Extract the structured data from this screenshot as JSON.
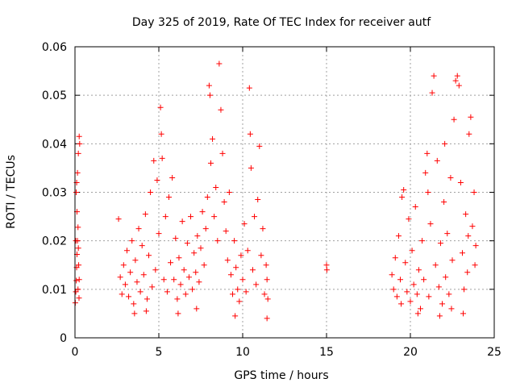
{
  "chart_data": {
    "type": "scatter",
    "title": "Day 325 of 2019, Rate Of TEC Index for receiver autf",
    "xlabel": "GPS time / hours",
    "ylabel": "ROTI / TECUs",
    "xlim": [
      0,
      25
    ],
    "ylim": [
      0,
      0.06
    ],
    "xticks": [
      "0",
      "5",
      "10",
      "15",
      "20",
      "25"
    ],
    "yticks": [
      "0",
      "0.01",
      "0.02",
      "0.03",
      "0.04",
      "0.05",
      "0.06"
    ],
    "grid": true,
    "marker": "+",
    "color": "#ff0000",
    "series": [
      {
        "points": [
          [
            0.02,
            0.0072
          ],
          [
            0.05,
            0.0095
          ],
          [
            0.08,
            0.0118
          ],
          [
            0.1,
            0.0145
          ],
          [
            0.12,
            0.0172
          ],
          [
            0.15,
            0.02
          ],
          [
            0.18,
            0.0228
          ],
          [
            0.2,
            0.0185
          ],
          [
            0.22,
            0.015
          ],
          [
            0.25,
            0.012
          ],
          [
            0.07,
            0.03
          ],
          [
            0.1,
            0.032
          ],
          [
            0.15,
            0.034
          ],
          [
            0.2,
            0.038
          ],
          [
            0.25,
            0.0415
          ],
          [
            0.28,
            0.04
          ],
          [
            0.12,
            0.026
          ],
          [
            0.18,
            0.01
          ],
          [
            0.24,
            0.0082
          ],
          [
            0.05,
            0.02
          ],
          [
            2.6,
            0.0245
          ],
          [
            2.7,
            0.0125
          ],
          [
            2.8,
            0.009
          ],
          [
            2.9,
            0.015
          ],
          [
            3.0,
            0.011
          ],
          [
            3.1,
            0.018
          ],
          [
            3.2,
            0.0085
          ],
          [
            3.3,
            0.0135
          ],
          [
            3.4,
            0.02
          ],
          [
            3.5,
            0.007
          ],
          [
            3.6,
            0.016
          ],
          [
            3.7,
            0.0115
          ],
          [
            3.8,
            0.0225
          ],
          [
            3.9,
            0.0095
          ],
          [
            4.0,
            0.019
          ],
          [
            4.1,
            0.013
          ],
          [
            4.2,
            0.0255
          ],
          [
            4.3,
            0.008
          ],
          [
            4.4,
            0.017
          ],
          [
            4.5,
            0.03
          ],
          [
            4.6,
            0.0105
          ],
          [
            4.7,
            0.0365
          ],
          [
            4.8,
            0.014
          ],
          [
            4.9,
            0.0325
          ],
          [
            5.0,
            0.0215
          ],
          [
            5.1,
            0.0475
          ],
          [
            5.15,
            0.042
          ],
          [
            5.2,
            0.037
          ],
          [
            5.3,
            0.012
          ],
          [
            5.4,
            0.025
          ],
          [
            5.5,
            0.0095
          ],
          [
            5.6,
            0.029
          ],
          [
            5.7,
            0.0155
          ],
          [
            5.8,
            0.033
          ],
          [
            5.9,
            0.012
          ],
          [
            6.0,
            0.0205
          ],
          [
            6.1,
            0.008
          ],
          [
            6.2,
            0.0165
          ],
          [
            6.3,
            0.011
          ],
          [
            6.4,
            0.024
          ],
          [
            6.5,
            0.014
          ],
          [
            6.6,
            0.009
          ],
          [
            6.7,
            0.0195
          ],
          [
            6.8,
            0.0125
          ],
          [
            6.9,
            0.025
          ],
          [
            7.0,
            0.01
          ],
          [
            7.1,
            0.0175
          ],
          [
            7.2,
            0.0135
          ],
          [
            7.3,
            0.021
          ],
          [
            7.4,
            0.0115
          ],
          [
            7.5,
            0.0185
          ],
          [
            7.6,
            0.026
          ],
          [
            7.7,
            0.015
          ],
          [
            7.8,
            0.0225
          ],
          [
            7.9,
            0.029
          ],
          [
            8.0,
            0.052
          ],
          [
            8.05,
            0.05
          ],
          [
            8.1,
            0.036
          ],
          [
            8.2,
            0.041
          ],
          [
            8.3,
            0.025
          ],
          [
            8.4,
            0.031
          ],
          [
            8.5,
            0.02
          ],
          [
            8.6,
            0.0565
          ],
          [
            8.7,
            0.047
          ],
          [
            8.8,
            0.038
          ],
          [
            8.9,
            0.028
          ],
          [
            9.0,
            0.022
          ],
          [
            9.1,
            0.016
          ],
          [
            9.2,
            0.03
          ],
          [
            9.3,
            0.013
          ],
          [
            9.4,
            0.009
          ],
          [
            9.5,
            0.02
          ],
          [
            9.6,
            0.0145
          ],
          [
            9.7,
            0.01
          ],
          [
            9.8,
            0.0075
          ],
          [
            9.9,
            0.017
          ],
          [
            10.0,
            0.012
          ],
          [
            10.1,
            0.0235
          ],
          [
            10.2,
            0.0095
          ],
          [
            10.3,
            0.018
          ],
          [
            10.4,
            0.0515
          ],
          [
            10.45,
            0.042
          ],
          [
            10.5,
            0.035
          ],
          [
            10.6,
            0.014
          ],
          [
            10.7,
            0.025
          ],
          [
            10.8,
            0.011
          ],
          [
            10.9,
            0.0285
          ],
          [
            11.0,
            0.0395
          ],
          [
            11.1,
            0.017
          ],
          [
            11.2,
            0.0225
          ],
          [
            11.3,
            0.009
          ],
          [
            11.4,
            0.015
          ],
          [
            11.5,
            0.008
          ],
          [
            11.45,
            0.012
          ],
          [
            4.25,
            0.0055
          ],
          [
            6.15,
            0.005
          ],
          [
            7.25,
            0.006
          ],
          [
            9.55,
            0.0045
          ],
          [
            11.45,
            0.004
          ],
          [
            3.55,
            0.005
          ],
          [
            15.0,
            0.015
          ],
          [
            15.02,
            0.014
          ],
          [
            18.9,
            0.013
          ],
          [
            19.0,
            0.01
          ],
          [
            19.1,
            0.0165
          ],
          [
            19.2,
            0.0085
          ],
          [
            19.3,
            0.021
          ],
          [
            19.4,
            0.012
          ],
          [
            19.5,
            0.029
          ],
          [
            19.6,
            0.0305
          ],
          [
            19.7,
            0.0155
          ],
          [
            19.8,
            0.0095
          ],
          [
            19.9,
            0.0245
          ],
          [
            20.0,
            0.0075
          ],
          [
            20.1,
            0.018
          ],
          [
            20.2,
            0.011
          ],
          [
            20.3,
            0.027
          ],
          [
            20.4,
            0.009
          ],
          [
            20.5,
            0.014
          ],
          [
            20.6,
            0.006
          ],
          [
            20.7,
            0.02
          ],
          [
            20.8,
            0.012
          ],
          [
            20.9,
            0.034
          ],
          [
            21.0,
            0.038
          ],
          [
            21.1,
            0.0085
          ],
          [
            21.2,
            0.0235
          ],
          [
            21.3,
            0.0505
          ],
          [
            21.4,
            0.054
          ],
          [
            21.5,
            0.015
          ],
          [
            21.6,
            0.0365
          ],
          [
            21.7,
            0.0105
          ],
          [
            21.8,
            0.0195
          ],
          [
            21.9,
            0.007
          ],
          [
            22.0,
            0.028
          ],
          [
            22.1,
            0.0125
          ],
          [
            22.2,
            0.0215
          ],
          [
            22.3,
            0.009
          ],
          [
            22.4,
            0.033
          ],
          [
            22.5,
            0.016
          ],
          [
            22.6,
            0.045
          ],
          [
            22.7,
            0.053
          ],
          [
            22.8,
            0.054
          ],
          [
            22.9,
            0.052
          ],
          [
            23.0,
            0.032
          ],
          [
            23.1,
            0.0175
          ],
          [
            23.2,
            0.01
          ],
          [
            23.3,
            0.0255
          ],
          [
            23.4,
            0.0135
          ],
          [
            23.5,
            0.042
          ],
          [
            23.6,
            0.0455
          ],
          [
            23.7,
            0.023
          ],
          [
            23.8,
            0.03
          ],
          [
            23.9,
            0.019
          ],
          [
            23.85,
            0.015
          ],
          [
            23.15,
            0.005
          ],
          [
            22.45,
            0.006
          ],
          [
            21.75,
            0.0045
          ],
          [
            20.45,
            0.005
          ],
          [
            19.45,
            0.007
          ],
          [
            21.05,
            0.03
          ],
          [
            22.05,
            0.04
          ],
          [
            23.45,
            0.021
          ]
        ]
      }
    ]
  }
}
